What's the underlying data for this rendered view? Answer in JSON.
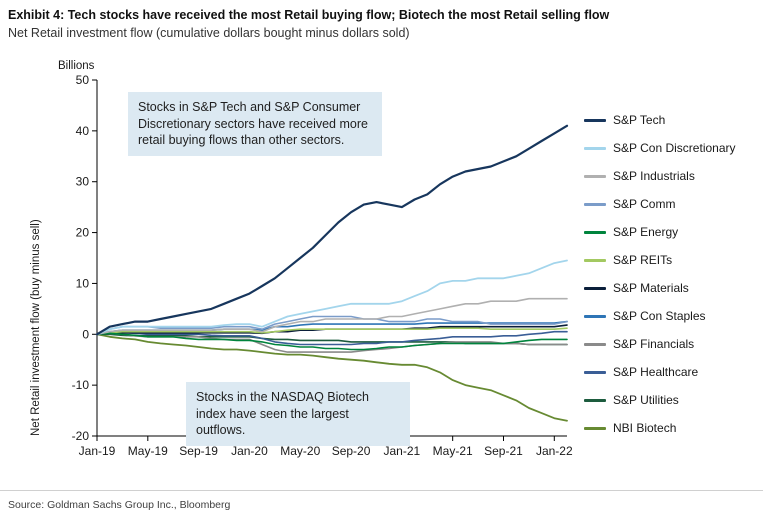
{
  "title": "Exhibit 4: Tech stocks have received the most Retail buying flow; Biotech the most Retail selling flow",
  "subtitle": "Net Retail investment flow (cumulative dollars bought minus dollars sold)",
  "source": "Source: Goldman Sachs Group Inc., Bloomberg",
  "annotations": {
    "top": "Stocks in S&P Tech and S&P Consumer Discretionary sectors have received more retail buying flows than other sectors.",
    "bottom": "Stocks in the NASDAQ Biotech index have seen the largest outflows."
  },
  "chart_data": {
    "type": "line",
    "title": "",
    "xlabel": "",
    "ylabel": "Net Retail investment flow (buy minus sell)",
    "y_units_label": "Billions",
    "ylim": [
      -20,
      50
    ],
    "ytick_step": 10,
    "grid": false,
    "legend_position": "right",
    "x_tick_labels": [
      "Jan-19",
      "May-19",
      "Sep-19",
      "Jan-20",
      "May-20",
      "Sep-20",
      "Jan-21",
      "May-21",
      "Sep-21",
      "Jan-22"
    ],
    "x_tick_indices": [
      0,
      4,
      8,
      12,
      16,
      20,
      24,
      28,
      32,
      36
    ],
    "n_points": 38,
    "series": [
      {
        "name": "S&P Tech",
        "color": "#17365d",
        "width": 2.2,
        "values": [
          0,
          1.5,
          2,
          2.5,
          2.5,
          3,
          3.5,
          4,
          4.5,
          5,
          6,
          7,
          8,
          9.5,
          11,
          13,
          15,
          17,
          19.5,
          22,
          24,
          25.5,
          26,
          25.5,
          25,
          26.5,
          27.5,
          29.5,
          31,
          32,
          32.5,
          33,
          34,
          35,
          36.5,
          38,
          39.5,
          41
        ]
      },
      {
        "name": "S&P Con Discretionary",
        "color": "#a3d5ec",
        "width": 1.8,
        "values": [
          0,
          1,
          1.5,
          1.5,
          1.5,
          1.5,
          1.5,
          1.5,
          1.5,
          1.5,
          1.8,
          2,
          2,
          1.5,
          2.5,
          3.5,
          4,
          4.5,
          5,
          5.5,
          6,
          6,
          6,
          6,
          6.5,
          7.5,
          8.5,
          10,
          10.5,
          10.5,
          11,
          11,
          11,
          11.5,
          12,
          13,
          14,
          14.5
        ]
      },
      {
        "name": "S&P Industrials",
        "color": "#b0b0b0",
        "width": 1.6,
        "values": [
          0,
          0.5,
          0.8,
          0.8,
          0.8,
          0.8,
          0.8,
          0.8,
          0.8,
          0.8,
          1,
          1,
          1,
          0.5,
          1.5,
          2,
          2.5,
          2.5,
          3,
          3,
          3,
          3,
          3,
          3.5,
          3.5,
          4,
          4.5,
          5,
          5.5,
          6,
          6,
          6.5,
          6.5,
          6.5,
          7,
          7,
          7,
          7
        ]
      },
      {
        "name": "S&P Comm",
        "color": "#7b9cc9",
        "width": 1.6,
        "values": [
          0,
          1,
          1.5,
          1.5,
          1.5,
          1.2,
          1.2,
          1.2,
          1.2,
          1.2,
          1.5,
          1.5,
          1.5,
          1,
          2,
          2.5,
          3,
          3.5,
          3.5,
          3.5,
          3.5,
          3,
          3,
          2.5,
          2.5,
          2.5,
          3,
          3,
          2.5,
          2.5,
          2.5,
          2,
          2,
          2,
          2,
          2,
          2,
          2.5
        ]
      },
      {
        "name": "S&P Energy",
        "color": "#00843d",
        "width": 1.6,
        "values": [
          0,
          0.2,
          0,
          -0.2,
          -0.5,
          -0.5,
          -0.5,
          -0.8,
          -1,
          -1,
          -1,
          -1.2,
          -1.2,
          -1.5,
          -2,
          -2.2,
          -2.5,
          -2.5,
          -2.8,
          -2.8,
          -3,
          -3,
          -2.8,
          -2.5,
          -2.5,
          -2.2,
          -2,
          -1.8,
          -1.8,
          -1.8,
          -1.8,
          -1.8,
          -1.8,
          -1.5,
          -1.2,
          -1,
          -1,
          -1
        ]
      },
      {
        "name": "S&P REITs",
        "color": "#a3c961",
        "width": 1.6,
        "values": [
          0,
          0.3,
          0.5,
          0.5,
          0.5,
          0.5,
          0.5,
          0.5,
          0.5,
          0.5,
          0.5,
          0.5,
          0.5,
          0.3,
          0.5,
          0.8,
          1,
          1,
          1,
          1,
          1,
          1,
          1,
          1,
          1,
          1,
          1,
          1.2,
          1.2,
          1.2,
          1.2,
          1,
          1,
          1,
          1,
          1,
          1,
          1.2
        ]
      },
      {
        "name": "S&P Materials",
        "color": "#0b1f3a",
        "width": 1.6,
        "values": [
          0,
          0.2,
          0.3,
          0.3,
          0.3,
          0.3,
          0.3,
          0.3,
          0.3,
          0.3,
          0.3,
          0.3,
          0.3,
          0.2,
          0.5,
          0.5,
          0.8,
          0.8,
          1,
          1,
          1,
          1,
          1,
          1,
          1,
          1.2,
          1.2,
          1.5,
          1.5,
          1.5,
          1.5,
          1.5,
          1.5,
          1.5,
          1.5,
          1.5,
          1.5,
          1.8
        ]
      },
      {
        "name": "S&P Con Staples",
        "color": "#2e75b6",
        "width": 1.6,
        "values": [
          0,
          0.5,
          0.8,
          0.8,
          0.8,
          0.8,
          0.8,
          0.8,
          0.8,
          0.8,
          1,
          1,
          1,
          0.8,
          1.5,
          1.5,
          1.8,
          2,
          2,
          2,
          2,
          2,
          2,
          2,
          2,
          2,
          2.2,
          2.2,
          2.2,
          2.2,
          2.2,
          2.2,
          2.2,
          2.2,
          2.2,
          2.2,
          2.2,
          2.5
        ]
      },
      {
        "name": "S&P Financials",
        "color": "#8a8a8a",
        "width": 1.6,
        "values": [
          0,
          0.2,
          0,
          -0.3,
          -0.5,
          -0.5,
          -0.5,
          -0.5,
          -0.5,
          -0.8,
          -1,
          -1,
          -1,
          -2,
          -3,
          -3.5,
          -3.5,
          -3.5,
          -3.5,
          -3.5,
          -3.5,
          -3.2,
          -3,
          -2.8,
          -2.5,
          -2.2,
          -2,
          -1.8,
          -1.5,
          -1.5,
          -1.5,
          -1.5,
          -1.8,
          -1.8,
          -2,
          -2,
          -2,
          -2
        ]
      },
      {
        "name": "S&P Healthcare",
        "color": "#3a5e96",
        "width": 1.6,
        "values": [
          0,
          0.3,
          0.3,
          0.2,
          0,
          0,
          0,
          0,
          0,
          -0.2,
          -0.3,
          -0.3,
          -0.3,
          -0.8,
          -1.5,
          -1.8,
          -2,
          -2,
          -2,
          -2,
          -2,
          -1.8,
          -1.8,
          -1.5,
          -1.5,
          -1.2,
          -1,
          -0.8,
          -0.5,
          -0.5,
          -0.5,
          -0.5,
          -0.3,
          -0.3,
          0,
          0.2,
          0.5,
          0.5
        ]
      },
      {
        "name": "S&P Utilities",
        "color": "#1d5c3e",
        "width": 1.6,
        "values": [
          0,
          0,
          -0.2,
          -0.3,
          -0.3,
          -0.3,
          -0.3,
          -0.3,
          -0.5,
          -0.5,
          -0.5,
          -0.5,
          -0.5,
          -0.8,
          -1,
          -1,
          -1.2,
          -1.2,
          -1.2,
          -1.2,
          -1.5,
          -1.5,
          -1.5,
          -1.5,
          -1.5,
          -1.5,
          -1.5,
          -1.5,
          -1.5,
          -1.8,
          -1.8,
          -1.8,
          -1.8,
          -1.8,
          -2,
          -2,
          -2,
          -2
        ]
      },
      {
        "name": "NBI Biotech",
        "color": "#678a32",
        "width": 1.8,
        "values": [
          0,
          -0.5,
          -0.8,
          -1,
          -1.5,
          -1.8,
          -2,
          -2.2,
          -2.5,
          -2.8,
          -3,
          -3,
          -3.2,
          -3.5,
          -3.8,
          -4,
          -4,
          -4.2,
          -4.5,
          -4.8,
          -5,
          -5.2,
          -5.5,
          -5.8,
          -6,
          -6,
          -6.5,
          -7.5,
          -9,
          -10,
          -10.5,
          -11,
          -12,
          -13,
          -14.5,
          -15.5,
          -16.5,
          -17
        ]
      }
    ]
  }
}
